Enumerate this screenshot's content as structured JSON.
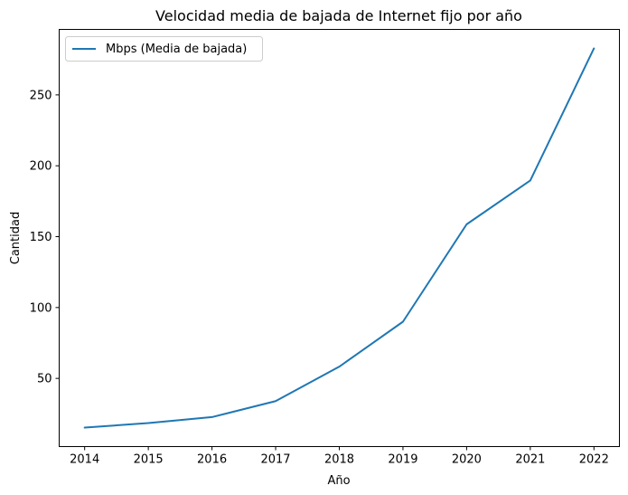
{
  "chart_data": {
    "type": "line",
    "title": "Velocidad media de bajada de Internet fijo por año",
    "xlabel": "Año",
    "ylabel": "Cantidad",
    "x": [
      2014,
      2015,
      2016,
      2017,
      2018,
      2019,
      2020,
      2021,
      2022
    ],
    "series": [
      {
        "name": "Mbps (Media de bajada)",
        "color": "#1f77b4",
        "values": [
          15.3,
          18.5,
          22.7,
          34.0,
          58.3,
          90.0,
          158.7,
          189.6,
          282.8
        ]
      }
    ],
    "xticks": [
      "2014",
      "2015",
      "2016",
      "2017",
      "2018",
      "2019",
      "2020",
      "2021",
      "2022"
    ],
    "yticks": [
      "50",
      "100",
      "150",
      "200",
      "250"
    ],
    "xlim": [
      2013.6,
      2022.4
    ],
    "ylim": [
      1.9,
      296.2
    ],
    "grid": false,
    "legend_position": "upper-left"
  }
}
